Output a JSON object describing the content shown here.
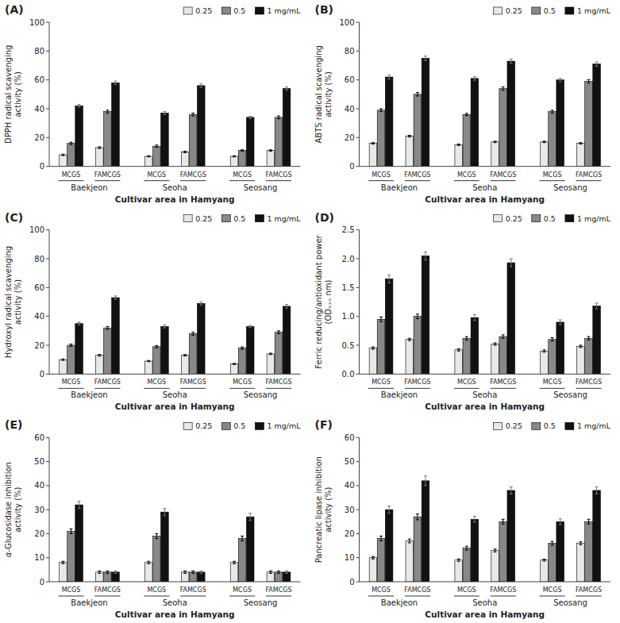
{
  "chart_data": [
    {
      "type": "bar",
      "title": "(A)",
      "xlabel": "Cultivar area in Hamyang",
      "ylabel": "DPPH radical scavenging\nactivity (%)",
      "categories": [
        "MCGS",
        "FAMCGS",
        "MCGS",
        "FAMCGS",
        "MCGS",
        "FAMCGS"
      ],
      "annotations": [
        "Baekjeon",
        "Seoha",
        "Seosang"
      ],
      "series": [
        {
          "name": "0.25",
          "color": "#e8e8e8",
          "values": [
            8,
            13,
            7,
            10,
            7,
            11
          ],
          "errors": [
            0.5,
            0.6,
            0.4,
            0.5,
            0.4,
            0.5
          ]
        },
        {
          "name": "0.5",
          "color": "#888888",
          "values": [
            16,
            38,
            14,
            36,
            11,
            34
          ],
          "errors": [
            0.8,
            1.0,
            0.8,
            1.0,
            0.5,
            1.0
          ]
        },
        {
          "name": "1 mg/mL",
          "color": "#111111",
          "values": [
            42,
            58,
            37,
            56,
            34,
            54
          ],
          "errors": [
            1.0,
            1.2,
            1.0,
            1.2,
            0.8,
            1.2
          ]
        }
      ],
      "ylim": [
        0,
        100
      ],
      "yticks": [
        0,
        20,
        40,
        60,
        80,
        100
      ],
      "grid": false,
      "legend": "top"
    },
    {
      "type": "bar",
      "title": "(B)",
      "xlabel": "Cultivar area in Hamyang",
      "ylabel": "ABTS radical scavenging\nactivity (%)",
      "categories": [
        "MCGS",
        "FAMCGS",
        "MCGS",
        "FAMCGS",
        "MCGS",
        "FAMCGS"
      ],
      "annotations": [
        "Baekjeon",
        "Seoha",
        "Seosang"
      ],
      "series": [
        {
          "name": "0.25",
          "color": "#e8e8e8",
          "values": [
            16,
            21,
            15,
            17,
            17,
            16
          ],
          "errors": [
            0.5,
            0.6,
            0.5,
            0.5,
            0.5,
            0.5
          ]
        },
        {
          "name": "0.5",
          "color": "#888888",
          "values": [
            39,
            50,
            36,
            54,
            38,
            59
          ],
          "errors": [
            1.0,
            1.2,
            0.8,
            1.2,
            1.0,
            1.2
          ]
        },
        {
          "name": "1 mg/mL",
          "color": "#111111",
          "values": [
            62,
            75,
            61,
            73,
            60,
            71
          ],
          "errors": [
            1.5,
            1.5,
            1.2,
            1.5,
            1.2,
            1.5
          ]
        }
      ],
      "ylim": [
        0,
        100
      ],
      "yticks": [
        0,
        20,
        40,
        60,
        80,
        100
      ],
      "grid": false,
      "legend": "top"
    },
    {
      "type": "bar",
      "title": "(C)",
      "xlabel": "Cultivar area in Hamyang",
      "ylabel": "Hydroxyl radical scavenging\nactivity (%)",
      "categories": [
        "MCGS",
        "FAMCGS",
        "MCGS",
        "FAMCGS",
        "MCGS",
        "FAMCGS"
      ],
      "annotations": [
        "Baekjeon",
        "Seoha",
        "Seosang"
      ],
      "series": [
        {
          "name": "0.25",
          "color": "#e8e8e8",
          "values": [
            10,
            13,
            9,
            13,
            7,
            14
          ],
          "errors": [
            0.5,
            0.6,
            0.4,
            0.5,
            0.4,
            0.5
          ]
        },
        {
          "name": "0.5",
          "color": "#888888",
          "values": [
            20,
            32,
            19,
            28,
            18,
            29
          ],
          "errors": [
            0.8,
            1.0,
            0.8,
            1.0,
            0.8,
            1.0
          ]
        },
        {
          "name": "1 mg/mL",
          "color": "#111111",
          "values": [
            35,
            53,
            33,
            49,
            33,
            47
          ],
          "errors": [
            1.0,
            1.2,
            1.0,
            1.2,
            0.8,
            1.2
          ]
        }
      ],
      "ylim": [
        0,
        100
      ],
      "yticks": [
        0,
        20,
        40,
        60,
        80,
        100
      ],
      "grid": false,
      "legend": "top"
    },
    {
      "type": "bar",
      "title": "(D)",
      "xlabel": "Cultivar area in Hamyang",
      "ylabel": "Ferric reducing/antioxidant power\n(ODₓₓₓ nm)",
      "categories": [
        "MCGS",
        "FAMCGS",
        "MCGS",
        "FAMCGS",
        "MCGS",
        "FAMCGS"
      ],
      "annotations": [
        "Baekjeon",
        "Seoha",
        "Seosang"
      ],
      "series": [
        {
          "name": "0.25",
          "color": "#e8e8e8",
          "values": [
            0.45,
            0.6,
            0.42,
            0.52,
            0.4,
            0.48
          ],
          "errors": [
            0.02,
            0.02,
            0.02,
            0.02,
            0.02,
            0.02
          ]
        },
        {
          "name": "0.5",
          "color": "#888888",
          "values": [
            0.95,
            1.0,
            0.62,
            0.65,
            0.6,
            0.62
          ],
          "errors": [
            0.04,
            0.04,
            0.03,
            0.03,
            0.03,
            0.03
          ]
        },
        {
          "name": "1 mg/mL",
          "color": "#111111",
          "values": [
            1.65,
            2.05,
            0.98,
            1.93,
            0.9,
            1.18
          ],
          "errors": [
            0.07,
            0.07,
            0.05,
            0.07,
            0.04,
            0.05
          ]
        }
      ],
      "ylim": [
        0,
        2.5
      ],
      "yticks": [
        {
          "value": 0,
          "label": "0.0"
        },
        0.5,
        {
          "value": 1,
          "label": "1.0"
        },
        1.5,
        {
          "value": 2,
          "label": "2.0"
        },
        2.5
      ],
      "grid": false,
      "legend": "top"
    },
    {
      "type": "bar",
      "title": "(E)",
      "xlabel": "Cultivar area in Hamyang",
      "ylabel": "α-Glucosidase inhibition\nactivity (%)",
      "categories": [
        "MCGS",
        "FAMCGS",
        "MCGS",
        "FAMCGS",
        "MCGS",
        "FAMCGS"
      ],
      "annotations": [
        "Baekjeon",
        "Seoha",
        "Seosang"
      ],
      "series": [
        {
          "name": "0.25",
          "color": "#e8e8e8",
          "values": [
            8,
            4,
            8,
            4,
            8,
            4
          ],
          "errors": [
            0.5,
            0.5,
            0.5,
            0.5,
            0.5,
            0.5
          ]
        },
        {
          "name": "0.5",
          "color": "#888888",
          "values": [
            21,
            4,
            19,
            4,
            18,
            4
          ],
          "errors": [
            1.0,
            0.5,
            1.0,
            0.5,
            1.0,
            0.5
          ]
        },
        {
          "name": "1 mg/mL",
          "color": "#111111",
          "values": [
            32,
            4,
            29,
            4,
            27,
            4
          ],
          "errors": [
            1.5,
            0.5,
            1.5,
            0.5,
            1.5,
            0.5
          ]
        }
      ],
      "ylim": [
        0,
        60
      ],
      "yticks": [
        0,
        10,
        20,
        30,
        40,
        50,
        60
      ],
      "grid": false,
      "legend": "top"
    },
    {
      "type": "bar",
      "title": "(F)",
      "xlabel": "Cultivar area in Hamyang",
      "ylabel": "Pancreatic lipase inhibition\nactivity (%)",
      "categories": [
        "MCGS",
        "FAMCGS",
        "MCGS",
        "FAMCGS",
        "MCGS",
        "FAMCGS"
      ],
      "annotations": [
        "Baekjeon",
        "Seoha",
        "Seosang"
      ],
      "series": [
        {
          "name": "0.25",
          "color": "#e8e8e8",
          "values": [
            10,
            17,
            9,
            13,
            9,
            16
          ],
          "errors": [
            0.5,
            0.8,
            0.5,
            0.6,
            0.4,
            0.6
          ]
        },
        {
          "name": "0.5",
          "color": "#888888",
          "values": [
            18,
            27,
            14,
            25,
            16,
            25
          ],
          "errors": [
            1.0,
            1.2,
            0.8,
            1.0,
            0.8,
            1.0
          ]
        },
        {
          "name": "1 mg/mL",
          "color": "#111111",
          "values": [
            30,
            42,
            26,
            38,
            25,
            38
          ],
          "errors": [
            1.5,
            2.0,
            1.2,
            1.5,
            1.2,
            1.5
          ]
        }
      ],
      "ylim": [
        0,
        60
      ],
      "yticks": [
        0,
        10,
        20,
        30,
        40,
        50,
        60
      ],
      "grid": false,
      "legend": "top"
    }
  ]
}
